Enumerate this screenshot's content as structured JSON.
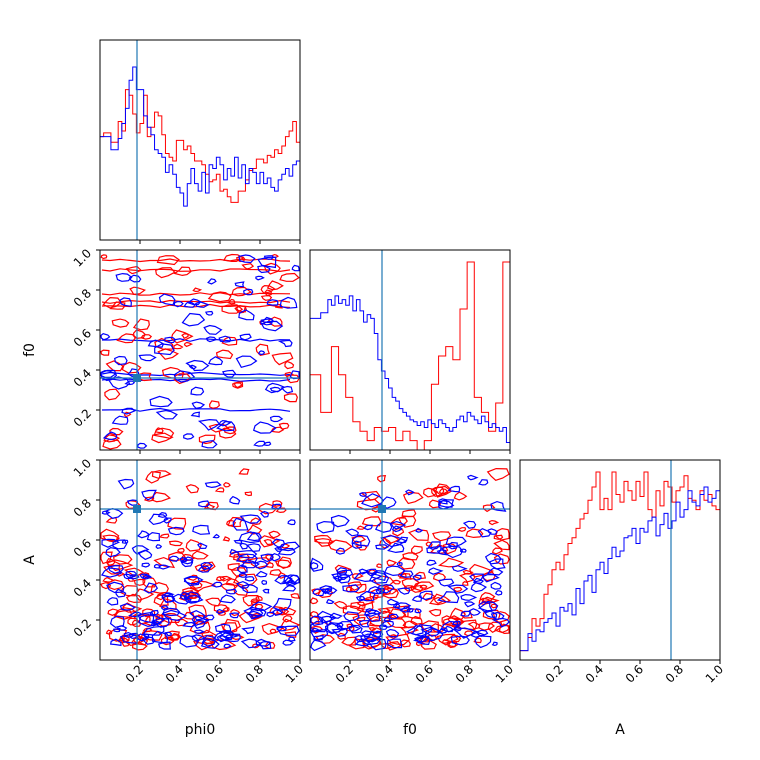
{
  "chart_data": {
    "type": "corner",
    "parameters": [
      "phi0",
      "f0",
      "A"
    ],
    "axis_labels": {
      "x": [
        "phi0",
        "f0",
        "A"
      ],
      "y": [
        "",
        "f0",
        "A"
      ]
    },
    "range": [
      0,
      1
    ],
    "tick_values": [
      0.2,
      0.4,
      0.6,
      0.8,
      1.0
    ],
    "tick_labels": [
      "0.2",
      "0.4",
      "0.6",
      "0.8",
      "1.0"
    ],
    "truth_values": {
      "phi0": 0.185,
      "f0": 0.36,
      "A": 0.755
    },
    "truth_color": "#1f77b4",
    "series": [
      {
        "color": "#ff0000",
        "histograms": {
          "phi0": [
            0.55,
            0.57,
            0.57,
            0.52,
            0.52,
            0.63,
            0.58,
            0.8,
            0.77,
            0.67,
            0.57,
            0.62,
            0.77,
            0.55,
            0.6,
            0.68,
            0.66,
            0.56,
            0.46,
            0.44,
            0.42,
            0.53,
            0.53,
            0.48,
            0.5,
            0.46,
            0.42,
            0.42,
            0.4,
            0.35,
            0.31,
            0.32,
            0.35,
            0.26,
            0.27,
            0.23,
            0.2,
            0.2,
            0.26,
            0.26,
            0.32,
            0.37,
            0.38,
            0.43,
            0.43,
            0.41,
            0.45,
            0.44,
            0.48,
            0.46,
            0.5,
            0.55,
            0.58,
            0.63,
            0.52
          ],
          "f0": [
            0.4,
            0.4,
            0.4,
            0.2,
            0.2,
            0.2,
            0.55,
            0.55,
            0.4,
            0.4,
            0.28,
            0.28,
            0.15,
            0.15,
            0.1,
            0.1,
            0.05,
            0.05,
            0.12,
            0.12,
            0.1,
            0.1,
            0.12,
            0.12,
            0.05,
            0.05,
            0.1,
            0.1,
            0.05,
            0.05,
            0.0,
            0.0,
            0.05,
            0.05,
            0.35,
            0.35,
            0.5,
            0.5,
            0.55,
            0.55,
            0.48,
            0.48,
            0.75,
            0.75,
            1.0,
            1.0,
            0.28,
            0.28,
            0.2,
            0.2,
            0.1,
            0.1,
            0.25,
            0.25,
            1.0,
            1.0
          ],
          "A": [
            0.05,
            0.05,
            0.12,
            0.22,
            0.18,
            0.22,
            0.35,
            0.4,
            0.48,
            0.52,
            0.48,
            0.56,
            0.62,
            0.65,
            0.7,
            0.75,
            0.78,
            0.85,
            0.92,
            1.0,
            0.8,
            0.86,
            0.8,
            1.0,
            0.88,
            0.84,
            0.95,
            0.9,
            0.85,
            0.95,
            0.87,
            1.0,
            0.8,
            0.76,
            0.9,
            0.82,
            0.95,
            0.92,
            0.84,
            0.9,
            0.92,
            0.98,
            0.86,
            0.85,
            0.8,
            0.9,
            0.85,
            0.88,
            0.82,
            0.8
          ]
        }
      },
      {
        "color": "#0000ff",
        "histograms": {
          "phi0": [
            0.55,
            0.55,
            0.55,
            0.48,
            0.48,
            0.54,
            0.62,
            0.7,
            0.85,
            0.92,
            0.8,
            0.8,
            0.66,
            0.6,
            0.56,
            0.48,
            0.46,
            0.44,
            0.36,
            0.4,
            0.35,
            0.28,
            0.25,
            0.18,
            0.3,
            0.38,
            0.3,
            0.26,
            0.36,
            0.25,
            0.4,
            0.38,
            0.44,
            0.4,
            0.32,
            0.38,
            0.34,
            0.44,
            0.33,
            0.4,
            0.3,
            0.38,
            0.36,
            0.3,
            0.36,
            0.3,
            0.33,
            0.28,
            0.26,
            0.32,
            0.35,
            0.38,
            0.34,
            0.4,
            0.42
          ],
          "f0": [
            0.7,
            0.7,
            0.7,
            0.73,
            0.73,
            0.8,
            0.77,
            0.82,
            0.78,
            0.8,
            0.77,
            0.82,
            0.74,
            0.8,
            0.74,
            0.68,
            0.72,
            0.7,
            0.62,
            0.48,
            0.42,
            0.38,
            0.33,
            0.28,
            0.26,
            0.22,
            0.2,
            0.18,
            0.16,
            0.15,
            0.13,
            0.15,
            0.12,
            0.16,
            0.14,
            0.12,
            0.16,
            0.14,
            0.12,
            0.1,
            0.12,
            0.16,
            0.18,
            0.15,
            0.2,
            0.18,
            0.16,
            0.14,
            0.18,
            0.15,
            0.12,
            0.14,
            0.12,
            0.1,
            0.12,
            0.04
          ],
          "A": [
            0.05,
            0.05,
            0.14,
            0.1,
            0.16,
            0.15,
            0.2,
            0.22,
            0.25,
            0.18,
            0.28,
            0.26,
            0.3,
            0.24,
            0.38,
            0.3,
            0.42,
            0.45,
            0.36,
            0.48,
            0.52,
            0.46,
            0.54,
            0.6,
            0.55,
            0.58,
            0.65,
            0.66,
            0.7,
            0.62,
            0.7,
            0.68,
            0.74,
            0.76,
            0.66,
            0.72,
            0.78,
            0.7,
            0.74,
            0.84,
            0.76,
            0.8,
            0.9,
            0.84,
            0.82,
            0.88,
            0.92,
            0.84,
            0.86,
            0.9
          ]
        }
      }
    ]
  }
}
